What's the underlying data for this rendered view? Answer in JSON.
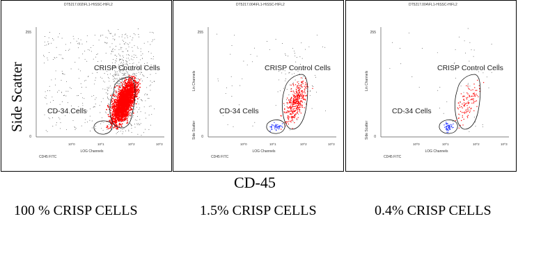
{
  "x_caption": "CD-45",
  "y_caption": "Side Scatter",
  "colors": {
    "crisp": "#ff0000",
    "cd34": "#2233ff",
    "background": "#333333"
  },
  "chart_data": [
    {
      "type": "scatter",
      "header": "DT5217.002\\FL1-H\\SSC-H\\FL2",
      "y_axis_label": "Side Scatter",
      "x_axis_label": "LOG Channels",
      "x_param_label": "CD45 FITC",
      "y_ticks": [
        "255",
        "",
        "",
        "",
        "0"
      ],
      "x_ticks": [
        "10^0",
        "10^1",
        "10^2",
        "10^3"
      ],
      "gates": [
        "CRISP Control Cells",
        "CD-34 Cells"
      ],
      "crisp_events": "dense",
      "cd34_events": "none",
      "caption": "100 % CRISP CELLS"
    },
    {
      "type": "scatter",
      "header": "DT5217.004\\FL1-H\\SSC-H\\FL2",
      "y_axis_label": "Lin Channels",
      "y_axis_label_lower": "Side Scatter",
      "x_axis_label": "LOG Channels",
      "x_param_label": "CD45 FITC",
      "y_ticks": [
        "255",
        "",
        "",
        "",
        "0"
      ],
      "x_ticks": [
        "10^0",
        "10^1",
        "10^2",
        "10^3"
      ],
      "gates": [
        "CRISP Control Cells",
        "CD-34 Cells"
      ],
      "crisp_events": "medium",
      "cd34_events": "some",
      "caption": "1.5% CRISP CELLS"
    },
    {
      "type": "scatter",
      "header": "DT5217.004\\FL1-H\\SSC-H\\FL2",
      "y_axis_label": "Lin Channels",
      "y_axis_label_lower": "Side Scatter",
      "x_axis_label": "LOG Channels",
      "x_param_label": "CD45 FITC",
      "y_ticks": [
        "255",
        "",
        "",
        "",
        "0"
      ],
      "x_ticks": [
        "10^0",
        "10^1",
        "10^2",
        "10^3"
      ],
      "gates": [
        "CRISP Control Cells",
        "CD-34 Cells"
      ],
      "crisp_events": "sparse",
      "cd34_events": "some",
      "caption": "0.4% CRISP CELLS"
    }
  ]
}
